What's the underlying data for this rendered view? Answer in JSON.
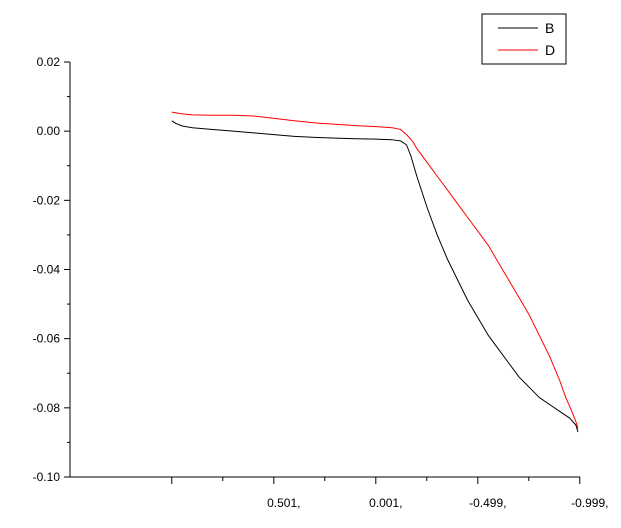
{
  "chart_data": {
    "type": "line",
    "title": "",
    "xlabel": "",
    "ylabel": "",
    "xlim": [
      1.5,
      -1.0
    ],
    "ylim": [
      -0.1,
      0.02
    ],
    "x_reversed": true,
    "grid": false,
    "legend_position": "top-right",
    "x_ticks": [
      {
        "value": 1.001,
        "label": ""
      },
      {
        "value": 0.501,
        "label": "0.501,"
      },
      {
        "value": 0.001,
        "label": "0.001,"
      },
      {
        "value": -0.499,
        "label": "-0.499,"
      },
      {
        "value": -0.999,
        "label": "-0.999,"
      }
    ],
    "y_ticks": [
      {
        "value": 0.02,
        "label": "0.02"
      },
      {
        "value": 0.0,
        "label": "0.00"
      },
      {
        "value": -0.02,
        "label": "-0.02"
      },
      {
        "value": -0.04,
        "label": "-0.04"
      },
      {
        "value": -0.06,
        "label": "-0.06"
      },
      {
        "value": -0.08,
        "label": "-0.08"
      },
      {
        "value": -0.1,
        "label": "-0.10"
      }
    ],
    "series": [
      {
        "name": "B",
        "color": "#000000",
        "x": [
          1.001,
          0.98,
          0.95,
          0.9,
          0.8,
          0.7,
          0.6,
          0.5,
          0.4,
          0.3,
          0.2,
          0.1,
          0.0,
          -0.08,
          -0.12,
          -0.15,
          -0.17,
          -0.2,
          -0.25,
          -0.3,
          -0.35,
          -0.4,
          -0.45,
          -0.5,
          -0.55,
          -0.6,
          -0.65,
          -0.7,
          -0.75,
          -0.8,
          -0.85,
          -0.9,
          -0.95,
          -0.98,
          -0.99
        ],
        "y": [
          0.003,
          0.0022,
          0.0015,
          0.001,
          0.0005,
          0.0,
          -0.0005,
          -0.001,
          -0.0015,
          -0.0018,
          -0.002,
          -0.0022,
          -0.0023,
          -0.0025,
          -0.0028,
          -0.004,
          -0.007,
          -0.013,
          -0.022,
          -0.03,
          -0.037,
          -0.043,
          -0.049,
          -0.054,
          -0.059,
          -0.063,
          -0.067,
          -0.071,
          -0.074,
          -0.077,
          -0.079,
          -0.081,
          -0.083,
          -0.085,
          -0.087
        ]
      },
      {
        "name": "D",
        "color": "#ff0000",
        "x": [
          1.001,
          0.95,
          0.9,
          0.8,
          0.7,
          0.6,
          0.5,
          0.4,
          0.3,
          0.2,
          0.1,
          0.0,
          -0.08,
          -0.12,
          -0.15,
          -0.18,
          -0.2,
          -0.25,
          -0.3,
          -0.35,
          -0.4,
          -0.45,
          -0.5,
          -0.55,
          -0.6,
          -0.65,
          -0.7,
          -0.75,
          -0.8,
          -0.85,
          -0.9,
          -0.93,
          -0.96,
          -0.98,
          -0.99
        ],
        "y": [
          0.0055,
          0.005,
          0.0047,
          0.0046,
          0.0046,
          0.0044,
          0.0037,
          0.003,
          0.0024,
          0.002,
          0.0016,
          0.0013,
          0.001,
          0.0005,
          -0.001,
          -0.003,
          -0.005,
          -0.009,
          -0.013,
          -0.017,
          -0.021,
          -0.025,
          -0.029,
          -0.033,
          -0.038,
          -0.043,
          -0.048,
          -0.053,
          -0.059,
          -0.065,
          -0.072,
          -0.077,
          -0.081,
          -0.084,
          -0.086
        ]
      }
    ]
  }
}
